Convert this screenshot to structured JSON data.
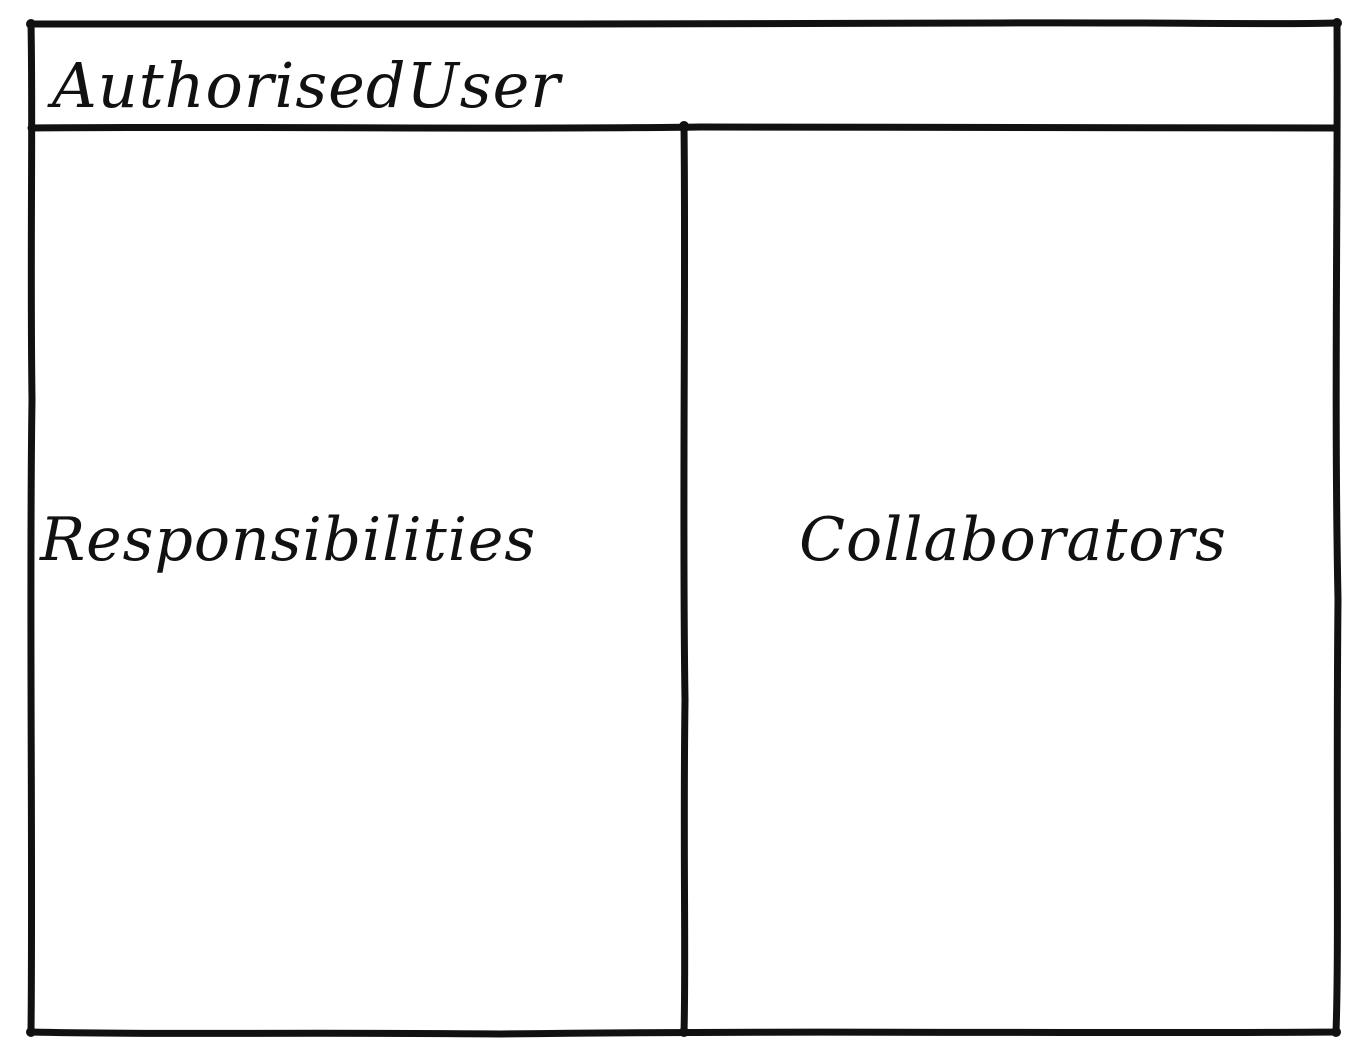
{
  "card": {
    "class_name": "AuthorisedUser",
    "left_column_label": "Responsibilities",
    "right_column_label": "Collaborators"
  },
  "style": {
    "ink_color": "#111111",
    "background_color": "#ffffff"
  }
}
